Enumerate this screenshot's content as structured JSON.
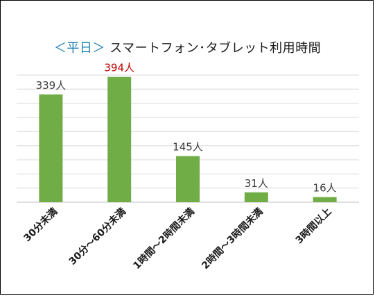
{
  "chart_data": {
    "type": "bar",
    "title_prefix": "＜平日＞",
    "title": "スマートフォン･タブレット利用時間",
    "categories": [
      "30分未満",
      "30分～60分未満",
      "1時間～2時間未満",
      "2時間～3時間未満",
      "3時間以上"
    ],
    "values": [
      339,
      394,
      145,
      31,
      16
    ],
    "data_labels": [
      "339人",
      "394人",
      "145人",
      "31人",
      "16人"
    ],
    "highlight_index": 1,
    "ylim": [
      0,
      400
    ],
    "grid": true,
    "legend": "none",
    "colors": {
      "bar": "#70ad47",
      "grid": "#d9d9d9",
      "label": "#404040",
      "highlight_label": "#c00000",
      "title_prefix": "#1f7fb6"
    }
  }
}
